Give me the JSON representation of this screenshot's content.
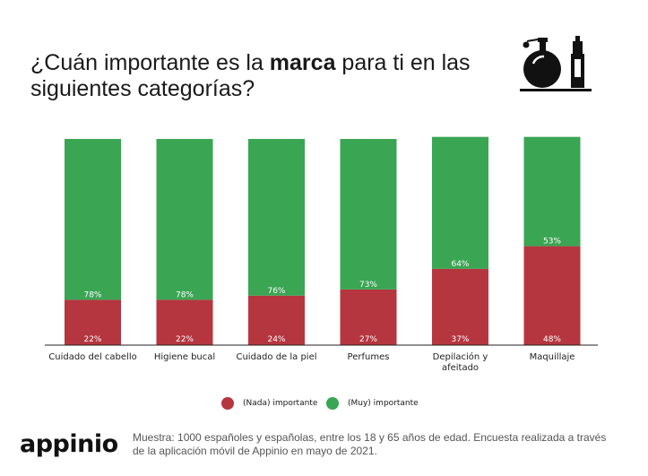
{
  "title": {
    "before": "¿Cuán importante es la ",
    "bold": "marca",
    "after": " para ti en las siguientes categorías?"
  },
  "colors": {
    "low": "#b5363f",
    "high": "#3aa553"
  },
  "chart_data": {
    "type": "bar",
    "stacked": true,
    "categories": [
      "Cuidado del cabello",
      "Higiene bucal",
      "Cuidado de la piel",
      "Perfumes",
      "Depilación y afeitado",
      "Maquillaje"
    ],
    "series": [
      {
        "name": "(Nada) importante",
        "values": [
          22,
          22,
          24,
          27,
          37,
          48
        ],
        "labels": [
          "22%",
          "22%",
          "24%",
          "27%",
          "37%",
          "48%"
        ]
      },
      {
        "name": "(Muy) importante",
        "values": [
          78,
          78,
          76,
          73,
          64,
          53
        ],
        "labels": [
          "78%",
          "78%",
          "76%",
          "73%",
          "64%",
          "53%"
        ]
      }
    ],
    "ylim": [
      0,
      100
    ],
    "legend": "bottom-center"
  },
  "legend": {
    "low": "(Nada) importante",
    "high": "(Muy) importante"
  },
  "brand": "appinio",
  "footnote": "Muestra: 1000 españoles y españolas, entre los 18 y 65 años de edad. Encuesta realizada a través de la aplicación móvil de Appinio en mayo de 2021."
}
